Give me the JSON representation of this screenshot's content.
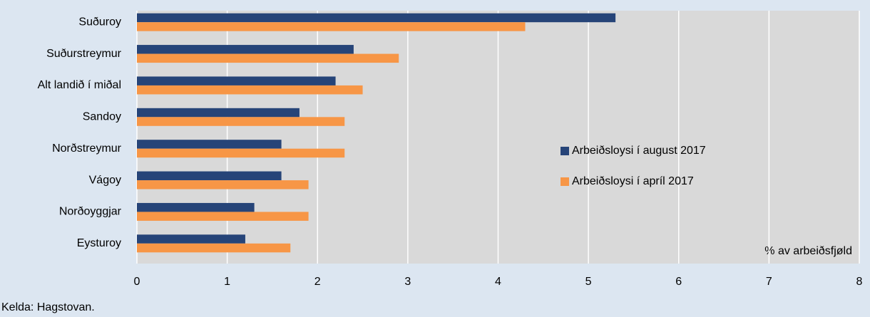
{
  "chart_data": {
    "type": "bar",
    "orientation": "horizontal",
    "categories": [
      "Suðuroy",
      "Suðurstreymur",
      "Alt landið í miðal",
      "Sandoy",
      "Norðstreymur",
      "Vágoy",
      "Norðoyggjar",
      "Eysturoy"
    ],
    "series": [
      {
        "name": "Arbeiðsloysi í august 2017",
        "color": "#264478",
        "values": [
          5.3,
          2.4,
          2.2,
          1.8,
          1.6,
          1.6,
          1.3,
          1.2
        ]
      },
      {
        "name": "Arbeiðsloysi í apríl 2017",
        "color": "#f79646",
        "values": [
          4.3,
          2.9,
          2.5,
          2.3,
          2.3,
          1.9,
          1.9,
          1.7
        ]
      }
    ],
    "xlim": [
      0,
      8
    ],
    "xticks": [
      0,
      1,
      2,
      3,
      4,
      5,
      6,
      7,
      8
    ],
    "grid": true,
    "legend": "right",
    "annotation": "% av arbeiðsfjøld",
    "source": "Kelda: Hagstovan."
  }
}
